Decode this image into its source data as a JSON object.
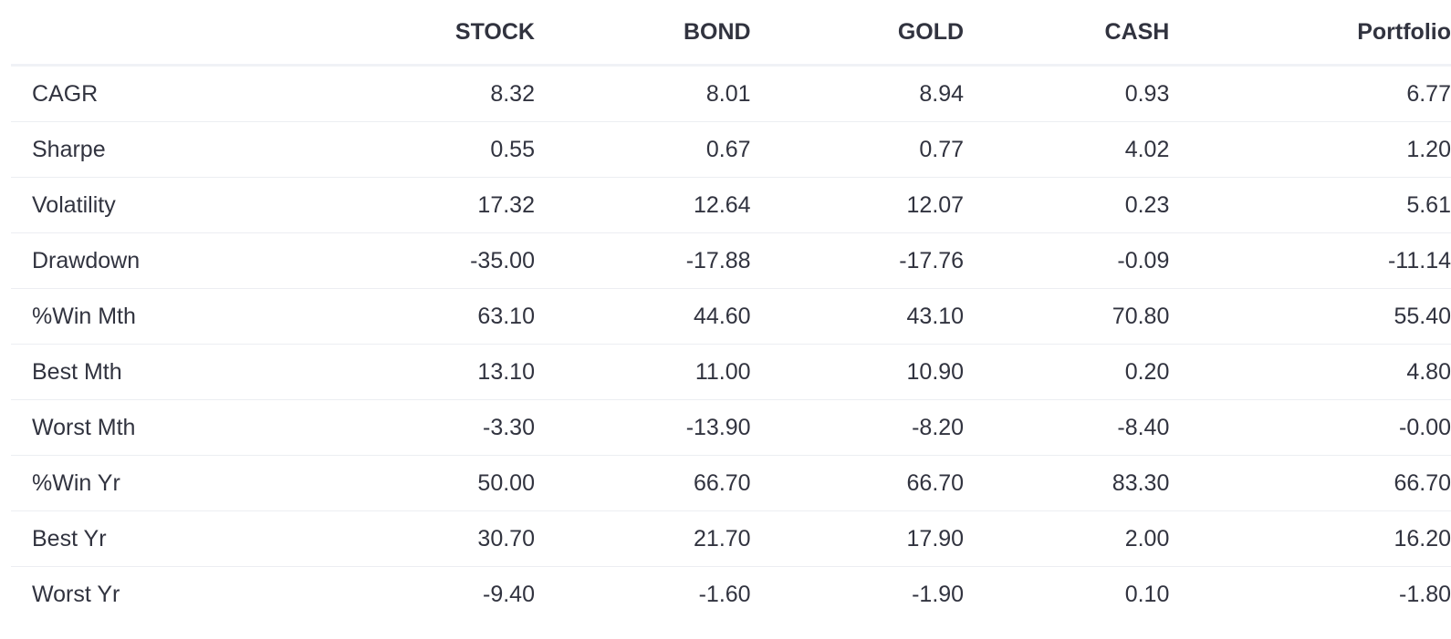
{
  "table": {
    "columns": [
      "STOCK",
      "BOND",
      "GOLD",
      "CASH",
      "Portfolio"
    ],
    "rows": [
      {
        "label": "CAGR",
        "values": [
          "8.32",
          "8.01",
          "8.94",
          "0.93",
          "6.77"
        ]
      },
      {
        "label": "Sharpe",
        "values": [
          "0.55",
          "0.67",
          "0.77",
          "4.02",
          "1.20"
        ]
      },
      {
        "label": "Volatility",
        "values": [
          "17.32",
          "12.64",
          "12.07",
          "0.23",
          "5.61"
        ]
      },
      {
        "label": "Drawdown",
        "values": [
          "-35.00",
          "-17.88",
          "-17.76",
          "-0.09",
          "-11.14"
        ]
      },
      {
        "label": "%Win Mth",
        "values": [
          "63.10",
          "44.60",
          "43.10",
          "70.80",
          "55.40"
        ]
      },
      {
        "label": "Best Mth",
        "values": [
          "13.10",
          "11.00",
          "10.90",
          "0.20",
          "4.80"
        ]
      },
      {
        "label": "Worst Mth",
        "values": [
          "-3.30",
          "-13.90",
          "-8.20",
          "-8.40",
          "-0.00"
        ]
      },
      {
        "label": "%Win Yr",
        "values": [
          "50.00",
          "66.70",
          "66.70",
          "83.30",
          "66.70"
        ]
      },
      {
        "label": "Best Yr",
        "values": [
          "30.70",
          "21.70",
          "17.90",
          "2.00",
          "16.20"
        ]
      },
      {
        "label": "Worst Yr",
        "values": [
          "-9.40",
          "-1.60",
          "-1.90",
          "0.10",
          "-1.80"
        ]
      }
    ]
  }
}
